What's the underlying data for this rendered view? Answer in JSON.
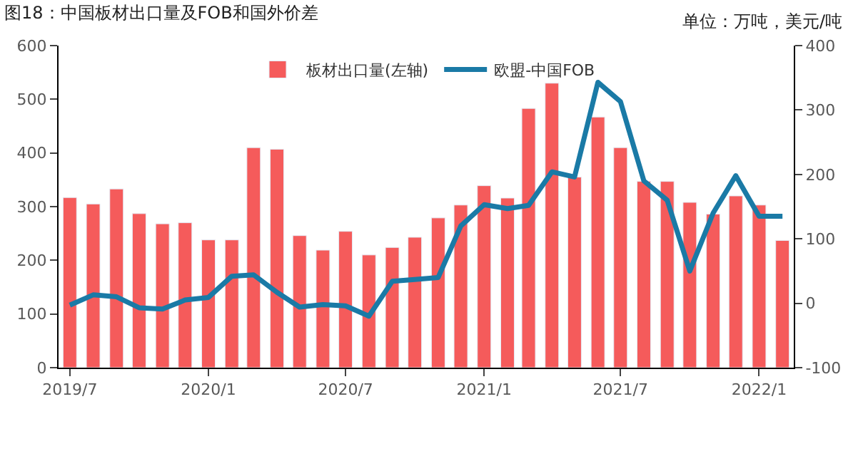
{
  "chart_data": {
    "type": "bar",
    "title": "图18：中国板材出口量及FOB和国外价差",
    "annotations": [
      "单位：万吨，美元/吨"
    ],
    "x": [
      "2019-07",
      "2019-08",
      "2019-09",
      "2019-10",
      "2019-11",
      "2019-12",
      "2020-01",
      "2020-02",
      "2020-03",
      "2020-04",
      "2020-05",
      "2020-06",
      "2020-07",
      "2020-08",
      "2020-09",
      "2020-10",
      "2020-11",
      "2020-12",
      "2021-01",
      "2021-02",
      "2021-03",
      "2021-04",
      "2021-05",
      "2021-06",
      "2021-07",
      "2021-08",
      "2021-09",
      "2021-10",
      "2021-11",
      "2021-12",
      "2022-01",
      "2022-02"
    ],
    "series": [
      {
        "name": "板材出口量(左轴)",
        "color": "#f55b5b",
        "values": [
          317,
          305,
          333,
          287,
          268,
          270,
          238,
          238,
          410,
          407,
          246,
          219,
          254,
          210,
          224,
          243,
          279,
          303,
          339,
          316,
          483,
          530,
          355,
          467,
          410,
          347,
          347,
          308,
          286,
          320,
          303,
          237
        ]
      },
      {
        "name": "欧盟-中国FOB",
        "type": "line",
        "axis": "y2",
        "color": "#1a7aa6",
        "values": [
          -3,
          13,
          10,
          -7,
          -9,
          5,
          9,
          42,
          44,
          17,
          -6,
          -2,
          -4,
          -20,
          34,
          37,
          40,
          120,
          153,
          147,
          152,
          204,
          196,
          343,
          313,
          190,
          160,
          50,
          140,
          198,
          135,
          135
        ]
      }
    ],
    "xlim": [
      "2019-06-16",
      "2022-02-16"
    ],
    "xticks": [
      {
        "value": "2019-07",
        "label": "2019/7"
      },
      {
        "value": "2020-01",
        "label": "2020/1"
      },
      {
        "value": "2020-07",
        "label": "2020/7"
      },
      {
        "value": "2021-01",
        "label": "2021/1"
      },
      {
        "value": "2021-07",
        "label": "2021/7"
      },
      {
        "value": "2022-01",
        "label": "2022/1"
      }
    ],
    "ylim": [
      0,
      600
    ],
    "yticks": [
      0,
      100,
      200,
      300,
      400,
      500,
      600
    ],
    "y2lim": [
      -100,
      400
    ],
    "y2ticks": [
      -100,
      0,
      100,
      200,
      300,
      400
    ],
    "legend": "top",
    "marker": "none",
    "line_style": "solid"
  }
}
